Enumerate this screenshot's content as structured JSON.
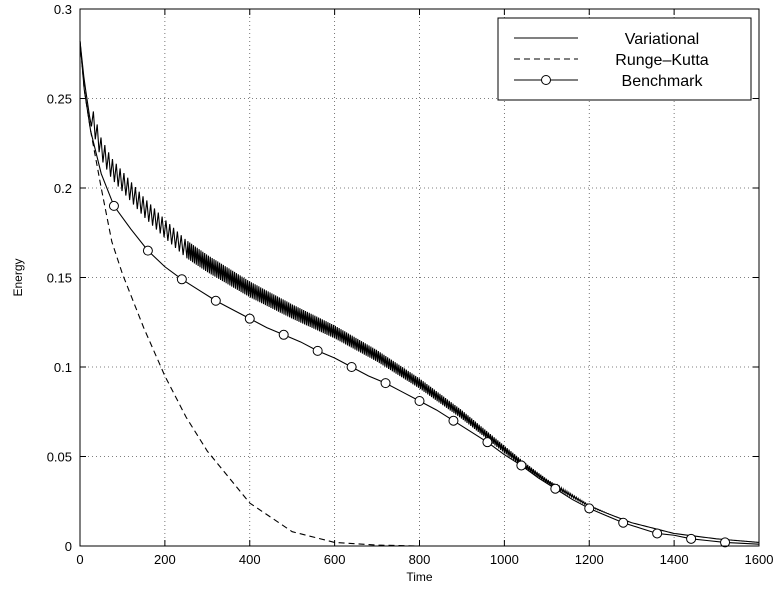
{
  "chart_data": {
    "type": "line",
    "xlabel": "Time",
    "ylabel": "Energy",
    "xlim": [
      0,
      1600
    ],
    "ylim": [
      0,
      0.3
    ],
    "xticks": [
      "0",
      "200",
      "400",
      "600",
      "800",
      "1000",
      "1200",
      "1400",
      "1600"
    ],
    "yticks": [
      "0",
      "0.05",
      "0.1",
      "0.15",
      "0.2",
      "0.25",
      "0.3"
    ],
    "grid": true,
    "legend_position": "top-right",
    "series": [
      {
        "name": "Variational",
        "style": "solid",
        "oscillating": true,
        "x": [
          0,
          10,
          25,
          50,
          75,
          100,
          150,
          200,
          250,
          300,
          400,
          500,
          600,
          700,
          800,
          900,
          1000,
          1050,
          1100,
          1200,
          1300,
          1400,
          1500,
          1600
        ],
        "y": [
          0.282,
          0.26,
          0.236,
          0.216,
          0.205,
          0.198,
          0.184,
          0.172,
          0.161,
          0.153,
          0.139,
          0.127,
          0.116,
          0.103,
          0.088,
          0.071,
          0.052,
          0.043,
          0.035,
          0.022,
          0.013,
          0.007,
          0.004,
          0.002
        ]
      },
      {
        "name": "Runge–Kutta",
        "style": "dashed",
        "x": [
          0,
          10,
          25,
          50,
          75,
          100,
          150,
          200,
          250,
          300,
          400,
          500,
          600,
          700,
          800,
          900,
          1000,
          1200,
          1400,
          1600
        ],
        "y": [
          0.282,
          0.255,
          0.232,
          0.2,
          0.17,
          0.152,
          0.122,
          0.095,
          0.072,
          0.053,
          0.024,
          0.008,
          0.002,
          0.0005,
          0.0,
          0.0,
          0.0,
          0.0,
          0.0,
          0.0
        ]
      },
      {
        "name": "Benchmark",
        "style": "solid-circles",
        "x": [
          0,
          10,
          25,
          50,
          80,
          120,
          160,
          200,
          240,
          280,
          320,
          360,
          400,
          440,
          480,
          520,
          560,
          600,
          640,
          680,
          720,
          760,
          800,
          840,
          880,
          920,
          960,
          1000,
          1040,
          1080,
          1120,
          1160,
          1200,
          1240,
          1280,
          1320,
          1360,
          1400,
          1440,
          1480,
          1520,
          1560,
          1600
        ],
        "y": [
          0.282,
          0.255,
          0.232,
          0.208,
          0.19,
          0.177,
          0.165,
          0.156,
          0.149,
          0.143,
          0.137,
          0.132,
          0.127,
          0.122,
          0.118,
          0.114,
          0.109,
          0.105,
          0.1,
          0.095,
          0.091,
          0.086,
          0.081,
          0.076,
          0.07,
          0.064,
          0.058,
          0.051,
          0.045,
          0.038,
          0.032,
          0.026,
          0.021,
          0.017,
          0.013,
          0.01,
          0.007,
          0.006,
          0.004,
          0.003,
          0.002,
          0.0015,
          0.001
        ],
        "marker_x": [
          80,
          160,
          240,
          320,
          400,
          480,
          560,
          640,
          720,
          800,
          880,
          960,
          1040,
          1120,
          1200,
          1280,
          1360,
          1440,
          1520
        ]
      }
    ]
  }
}
